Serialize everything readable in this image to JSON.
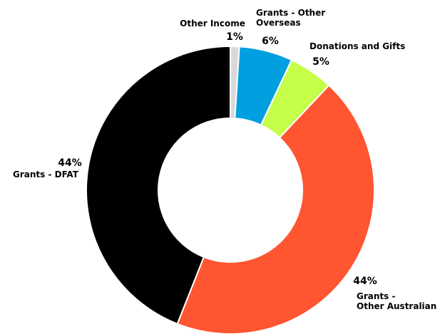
{
  "chart_data": {
    "type": "pie",
    "variant": "donut",
    "slices": [
      {
        "id": "other-income",
        "label": [
          "Other Income"
        ],
        "value": 1,
        "pct_label": "1%",
        "color": "#d9d9d9"
      },
      {
        "id": "grants-other-overseas",
        "label": [
          "Grants - Other",
          "Overseas"
        ],
        "value": 6,
        "pct_label": "6%",
        "color": "#009fdf"
      },
      {
        "id": "donations-and-gifts",
        "label": [
          "Donations and Gifts"
        ],
        "value": 5,
        "pct_label": "5%",
        "color": "#c5ff4a"
      },
      {
        "id": "grants-other-australian",
        "label": [
          "Grants -",
          "Other Australian"
        ],
        "value": 44,
        "pct_label": "44%",
        "color": "#ff5530"
      },
      {
        "id": "grants-dfat",
        "label": [
          "Grants - DFAT"
        ],
        "value": 44,
        "pct_label": "44%",
        "color": "#000000"
      }
    ]
  }
}
